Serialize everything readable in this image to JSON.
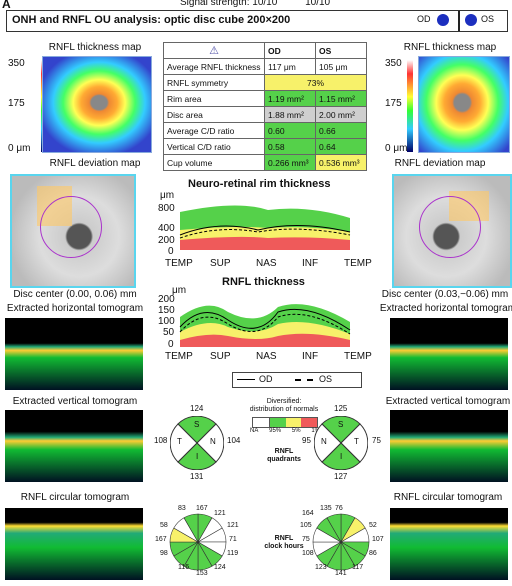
{
  "panel_letter": "A",
  "signal": "Signal strength: 10/10          10/10",
  "header": {
    "title": "ONH and RNFL OU analysis: optic disc cube 200×200",
    "od": "OD",
    "os": "OS"
  },
  "left": {
    "thickness_map_title": "RNFL thickness map",
    "deviation_map_title": "RNFL deviation map",
    "disc_center": "Disc center (0.00, 0.06) mm",
    "horiz_title": "Extracted horizontal tomogram",
    "vert_title": "Extracted vertical tomogram",
    "circ_title": "RNFL circular tomogram"
  },
  "right": {
    "thickness_map_title": "RNFL thickness map",
    "deviation_map_title": "RNFL deviation map",
    "disc_center": "Disc center (0.03,−0.06) mm",
    "horiz_title": "Extracted horizontal tomogram",
    "vert_title": "Extracted vertical tomogram",
    "circ_title": "RNFL circular tomogram"
  },
  "colorbar": {
    "top": "350",
    "mid": "175",
    "bot": "0 μm"
  },
  "table": {
    "col_od": "OD",
    "col_os": "OS",
    "rows": [
      {
        "label": "Average RNFL thickness",
        "od": "117 μm",
        "os": "105 μm",
        "od_c": "",
        "os_c": ""
      },
      {
        "label": "RNFL symmetry",
        "span": "73%",
        "span_c": "y"
      },
      {
        "label": "Rim area",
        "od": "1.19 mm²",
        "os": "1.15 mm²",
        "od_c": "g",
        "os_c": "g"
      },
      {
        "label": "Disc area",
        "od": "1.88 mm²",
        "os": "2.00 mm²",
        "od_c": "gr",
        "os_c": "gr"
      },
      {
        "label": "Average C/D ratio",
        "od": "0.60",
        "os": "0.66",
        "od_c": "g",
        "os_c": "g"
      },
      {
        "label": "Vertical C/D ratio",
        "od": "0.58",
        "os": "0.64",
        "od_c": "g",
        "os_c": "g"
      },
      {
        "label": "Cup volume",
        "od": "0.266 mm³",
        "os": "0.536 mm³",
        "od_c": "g",
        "os_c": "y"
      }
    ]
  },
  "rim_chart": {
    "title": "Neuro-retinal rim thickness",
    "unit": "μm",
    "yticks": [
      "800",
      "400",
      "200",
      "0"
    ],
    "xticks": [
      "TEMP",
      "SUP",
      "NAS",
      "INF",
      "TEMP"
    ]
  },
  "rnfl_chart": {
    "title": "RNFL thickness",
    "unit": "μm",
    "yticks": [
      "200",
      "150",
      "100",
      "50",
      "0"
    ],
    "xticks": [
      "TEMP",
      "SUP",
      "NAS",
      "INF",
      "TEMP"
    ]
  },
  "legend": {
    "od": "OD",
    "os": "OS"
  },
  "normals": {
    "title1": "Diversified:",
    "title2": "distribution of normals",
    "labels": [
      "NA",
      "95%",
      "5%",
      "1%"
    ]
  },
  "quadrants": {
    "label1": "RNFL",
    "label2": "quadrants",
    "od": {
      "top": "124",
      "left": "108",
      "right": "104",
      "bottom": "131",
      "S": "S",
      "T": "T",
      "N": "N",
      "I": "I"
    },
    "os": {
      "top": "125",
      "left": "95",
      "right": "75",
      "bottom": "127",
      "S": "S",
      "T": "T",
      "N": "N",
      "I": "I"
    }
  },
  "clock": {
    "label1": "RNFL",
    "label2": "clock hours",
    "od": [
      "83",
      "167",
      "121",
      "121",
      "71",
      "119",
      "124",
      "153",
      "116",
      "98",
      "167",
      "58"
    ],
    "os": [
      "76",
      "135",
      "164",
      "105",
      "75",
      "108",
      "123",
      "141",
      "117",
      "86",
      "107",
      "52"
    ]
  },
  "colors": {
    "green": "#55d14a",
    "yellow": "#f7f16a",
    "red": "#ef5a5a",
    "blue": "#1c2fbf",
    "cyan": "#59d5ee"
  }
}
